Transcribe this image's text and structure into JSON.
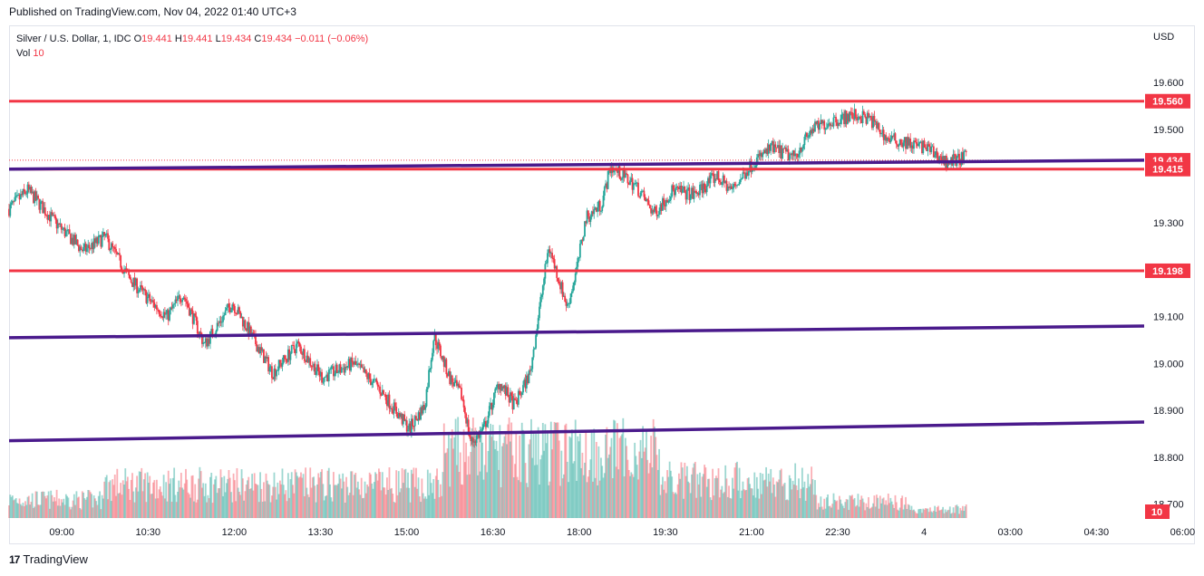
{
  "header": {
    "published": "Published on TradingView.com, Nov 04, 2022 01:40 UTC+3"
  },
  "legend": {
    "symbol": "Silver / U.S. Dollar, 1, IDC",
    "o_label": "O",
    "o_value": "19.441",
    "h_label": "H",
    "h_value": "19.441",
    "l_label": "L",
    "l_value": "19.434",
    "c_label": "C",
    "c_value": "19.434",
    "change": "−0.011 (−0.06%)",
    "vol_label": "Vol",
    "vol_value": "10"
  },
  "currency": "USD",
  "brand": {
    "logo": "17",
    "name": "TradingView"
  },
  "colors": {
    "up": "#26a69a",
    "down": "#f23645",
    "level_red": "#f23645",
    "trend_purple": "#4a1a8c"
  },
  "chart_data": {
    "type": "candlestick",
    "title": "Silver / U.S. Dollar, 1, IDC",
    "ylabel": "USD",
    "ylim": [
      18.67,
      19.72
    ],
    "y_ticks": [
      "19.600",
      "19.500",
      "19.300",
      "19.100",
      "19.000",
      "18.900",
      "18.800",
      "18.700"
    ],
    "x_ticks": [
      "09:00",
      "10:30",
      "12:00",
      "13:30",
      "15:00",
      "16:30",
      "18:00",
      "19:30",
      "21:00",
      "22:30",
      "4",
      "03:00",
      "04:30",
      "06:00"
    ],
    "price_path": [
      {
        "t": 0,
        "p": 19.33
      },
      {
        "t": 0.6,
        "p": 19.37
      },
      {
        "t": 1.5,
        "p": 19.3
      },
      {
        "t": 2.4,
        "p": 19.24
      },
      {
        "t": 3.1,
        "p": 19.27
      },
      {
        "t": 3.9,
        "p": 19.18
      },
      {
        "t": 4.6,
        "p": 19.13
      },
      {
        "t": 5.1,
        "p": 19.1
      },
      {
        "t": 5.6,
        "p": 19.15
      },
      {
        "t": 6.3,
        "p": 19.04
      },
      {
        "t": 7.2,
        "p": 19.13
      },
      {
        "t": 7.9,
        "p": 19.05
      },
      {
        "t": 8.5,
        "p": 18.98
      },
      {
        "t": 9.3,
        "p": 19.04
      },
      {
        "t": 10.1,
        "p": 18.97
      },
      {
        "t": 11.1,
        "p": 19.0
      },
      {
        "t": 11.9,
        "p": 18.95
      },
      {
        "t": 12.9,
        "p": 18.86
      },
      {
        "t": 13.4,
        "p": 18.91
      },
      {
        "t": 13.7,
        "p": 19.06
      },
      {
        "t": 14.2,
        "p": 18.97
      },
      {
        "t": 14.6,
        "p": 18.93
      },
      {
        "t": 14.9,
        "p": 18.83
      },
      {
        "t": 15.3,
        "p": 18.86
      },
      {
        "t": 15.8,
        "p": 18.96
      },
      {
        "t": 16.3,
        "p": 18.91
      },
      {
        "t": 16.8,
        "p": 18.98
      },
      {
        "t": 17.4,
        "p": 19.25
      },
      {
        "t": 18.0,
        "p": 19.12
      },
      {
        "t": 18.3,
        "p": 19.2
      },
      {
        "t": 18.6,
        "p": 19.31
      },
      {
        "t": 19.1,
        "p": 19.34
      },
      {
        "t": 19.4,
        "p": 19.42
      },
      {
        "t": 19.8,
        "p": 19.4
      },
      {
        "t": 20.2,
        "p": 19.38
      },
      {
        "t": 20.8,
        "p": 19.32
      },
      {
        "t": 21.4,
        "p": 19.37
      },
      {
        "t": 22.1,
        "p": 19.36
      },
      {
        "t": 22.8,
        "p": 19.4
      },
      {
        "t": 23.3,
        "p": 19.37
      },
      {
        "t": 24.0,
        "p": 19.43
      },
      {
        "t": 24.6,
        "p": 19.46
      },
      {
        "t": 25.3,
        "p": 19.44
      },
      {
        "t": 25.9,
        "p": 19.5
      },
      {
        "t": 26.6,
        "p": 19.52
      },
      {
        "t": 27.3,
        "p": 19.53
      },
      {
        "t": 27.8,
        "p": 19.52
      },
      {
        "t": 28.3,
        "p": 19.48
      },
      {
        "t": 29.0,
        "p": 19.47
      },
      {
        "t": 29.6,
        "p": 19.46
      },
      {
        "t": 30.2,
        "p": 19.43
      },
      {
        "t": 30.9,
        "p": 19.44
      }
    ],
    "horizontal_levels": [
      19.56,
      19.415,
      19.198
    ],
    "current_price": 19.434,
    "price_tags": [
      "19.560",
      "19.434",
      "19.415",
      "19.198"
    ],
    "trendlines": [
      {
        "from": [
          0,
          19.415
        ],
        "to": [
          36.6,
          19.434
        ]
      },
      {
        "from": [
          0,
          19.055
        ],
        "to": [
          36.6,
          19.08
        ]
      },
      {
        "from": [
          0,
          18.835
        ],
        "to": [
          36.6,
          18.875
        ]
      }
    ],
    "volume_label": "10"
  }
}
